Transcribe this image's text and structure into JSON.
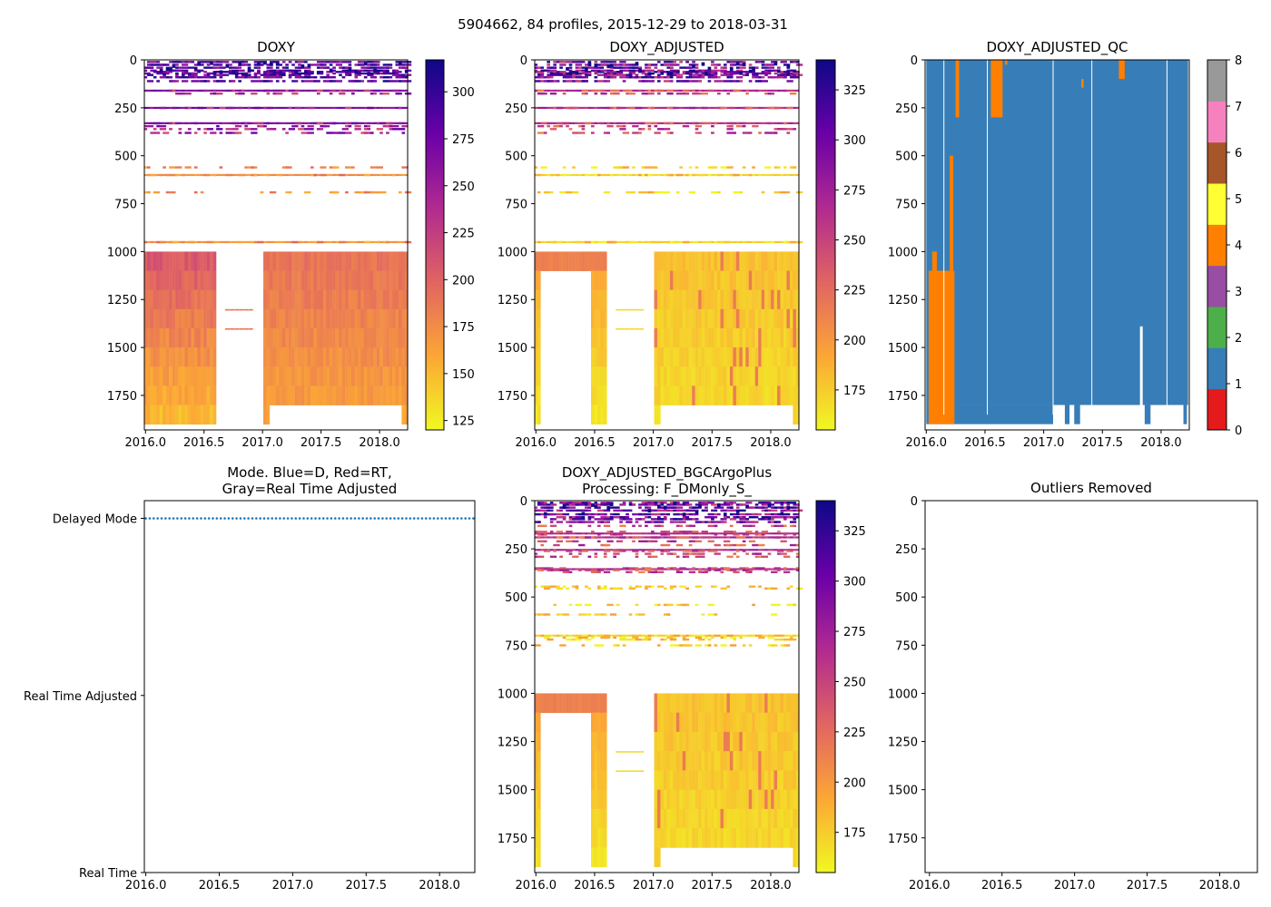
{
  "figure": {
    "suptitle": "5904662, 84 profiles, 2015-12-29 to 2018-03-31"
  },
  "colors": {
    "qc": [
      "#e41a1c",
      "#377eb8",
      "#4daf4a",
      "#984ea3",
      "#ff7f00",
      "#ffff33",
      "#a65628",
      "#f781bf",
      "#999999"
    ],
    "mode_dots": "#1f77b4",
    "plasma": [
      "#f0f921",
      "#fca636",
      "#e16462",
      "#b12a90",
      "#6a00a8",
      "#0d0887"
    ]
  },
  "chart_data": [
    {
      "type": "heatmap",
      "name": "doxy",
      "title": "DOXY",
      "x_ticks": [
        "2016.0",
        "2016.5",
        "2017.0",
        "2017.5",
        "2018.0"
      ],
      "x_tick_values": [
        2016.0,
        2016.5,
        2017.0,
        2017.5,
        2018.0
      ],
      "xlim": [
        2015.99,
        2018.24
      ],
      "y_ticks": [
        "0",
        "250",
        "500",
        "750",
        "1000",
        "1250",
        "1500",
        "1750"
      ],
      "y_tick_values": [
        0,
        250,
        500,
        750,
        1000,
        1250,
        1500,
        1750
      ],
      "ylim": [
        1930,
        0
      ],
      "colorbar": {
        "ticks": [
          "125",
          "150",
          "175",
          "200",
          "225",
          "250",
          "275",
          "300"
        ],
        "tick_values": [
          125,
          150,
          175,
          200,
          225,
          250,
          275,
          300
        ],
        "range": [
          120,
          317
        ]
      }
    },
    {
      "type": "heatmap",
      "name": "doxy-adjusted",
      "title": "DOXY_ADJUSTED",
      "x_ticks": [
        "2016.0",
        "2016.5",
        "2017.0",
        "2017.5",
        "2018.0"
      ],
      "x_tick_values": [
        2016.0,
        2016.5,
        2017.0,
        2017.5,
        2018.0
      ],
      "xlim": [
        2015.99,
        2018.24
      ],
      "y_ticks": [
        "0",
        "250",
        "500",
        "750",
        "1000",
        "1250",
        "1500",
        "1750"
      ],
      "y_tick_values": [
        0,
        250,
        500,
        750,
        1000,
        1250,
        1500,
        1750
      ],
      "ylim": [
        1930,
        0
      ],
      "colorbar": {
        "ticks": [
          "175",
          "200",
          "225",
          "250",
          "275",
          "300",
          "325"
        ],
        "tick_values": [
          175,
          200,
          225,
          250,
          275,
          300,
          325
        ],
        "range": [
          155,
          340
        ]
      }
    },
    {
      "type": "heatmap",
      "name": "doxy-adjusted-qc",
      "title": "DOXY_ADJUSTED_QC",
      "x_ticks": [
        "2016.0",
        "2016.5",
        "2017.0",
        "2017.5",
        "2018.0"
      ],
      "x_tick_values": [
        2016.0,
        2016.5,
        2017.0,
        2017.5,
        2018.0
      ],
      "xlim": [
        2015.99,
        2018.24
      ],
      "y_ticks": [
        "0",
        "250",
        "500",
        "750",
        "1000",
        "1250",
        "1500",
        "1750"
      ],
      "y_tick_values": [
        0,
        250,
        500,
        750,
        1000,
        1250,
        1500,
        1750
      ],
      "ylim": [
        1930,
        0
      ],
      "colorbar": {
        "ticks": [
          "0",
          "1",
          "2",
          "3",
          "4",
          "5",
          "6",
          "7",
          "8"
        ],
        "tick_values": [
          0,
          1,
          2,
          3,
          4,
          5,
          6,
          7,
          8
        ],
        "range": [
          0,
          8
        ]
      },
      "qc4_regions": [
        {
          "x0": 2016.02,
          "x1": 2016.24,
          "d0": 1100,
          "d1": 1900
        },
        {
          "x0": 2016.05,
          "x1": 2016.09,
          "d0": 1000,
          "d1": 1100
        },
        {
          "x0": 2016.2,
          "x1": 2016.23,
          "d0": 500,
          "d1": 1100
        },
        {
          "x0": 2016.25,
          "x1": 2016.28,
          "d0": 0,
          "d1": 300
        },
        {
          "x0": 2016.55,
          "x1": 2016.65,
          "d0": 0,
          "d1": 300
        },
        {
          "x0": 2016.67,
          "x1": 2016.69,
          "d0": 0,
          "d1": 25
        },
        {
          "x0": 2017.32,
          "x1": 2017.34,
          "d0": 100,
          "d1": 145
        },
        {
          "x0": 2017.64,
          "x1": 2017.69,
          "d0": 0,
          "d1": 100
        }
      ]
    },
    {
      "type": "scatter",
      "name": "mode",
      "title_lines": [
        "Mode. Blue=D, Red=RT,",
        "Gray=Real Time Adjusted"
      ],
      "x_ticks": [
        "2016.0",
        "2016.5",
        "2017.0",
        "2017.5",
        "2018.0"
      ],
      "x_tick_values": [
        2016.0,
        2016.5,
        2017.0,
        2017.5,
        2018.0
      ],
      "xlim": [
        2015.99,
        2018.24
      ],
      "y_ticks": [
        "Delayed Mode",
        "Real Time Adjusted",
        "Real Time"
      ],
      "y_tick_values": [
        2,
        1,
        0
      ],
      "ylim": [
        0,
        2.1
      ],
      "points_start": 2016.0,
      "points_end": 2018.23,
      "point_count": 84,
      "point_value": 2
    },
    {
      "type": "heatmap",
      "name": "doxy-adjusted-bgcargoplus",
      "title_lines": [
        "DOXY_ADJUSTED_BGCArgoPlus",
        "Processing: F_DMonly_S_"
      ],
      "x_ticks": [
        "2016.0",
        "2016.5",
        "2017.0",
        "2017.5",
        "2018.0"
      ],
      "x_tick_values": [
        2016.0,
        2016.5,
        2017.0,
        2017.5,
        2018.0
      ],
      "xlim": [
        2015.99,
        2018.24
      ],
      "y_ticks": [
        "0",
        "250",
        "500",
        "750",
        "1000",
        "1250",
        "1500",
        "1750"
      ],
      "y_tick_values": [
        0,
        250,
        500,
        750,
        1000,
        1250,
        1500,
        1750
      ],
      "ylim": [
        1930,
        0
      ],
      "colorbar": {
        "ticks": [
          "175",
          "200",
          "225",
          "250",
          "275",
          "300",
          "325"
        ],
        "tick_values": [
          175,
          200,
          225,
          250,
          275,
          300,
          325
        ],
        "range": [
          155,
          340
        ]
      }
    },
    {
      "type": "scatter",
      "name": "outliers-removed",
      "title": "Outliers Removed",
      "x_ticks": [
        "2016.0",
        "2016.5",
        "2017.0",
        "2017.5",
        "2018.0"
      ],
      "x_tick_values": [
        2016.0,
        2016.5,
        2017.0,
        2017.5,
        2018.0
      ],
      "xlim": [
        2015.97,
        2018.26
      ],
      "y_ticks": [
        "0",
        "250",
        "500",
        "750",
        "1000",
        "1250",
        "1500",
        "1750"
      ],
      "y_tick_values": [
        0,
        250,
        500,
        750,
        1000,
        1250,
        1500,
        1750
      ],
      "ylim": [
        1930,
        0
      ]
    }
  ]
}
